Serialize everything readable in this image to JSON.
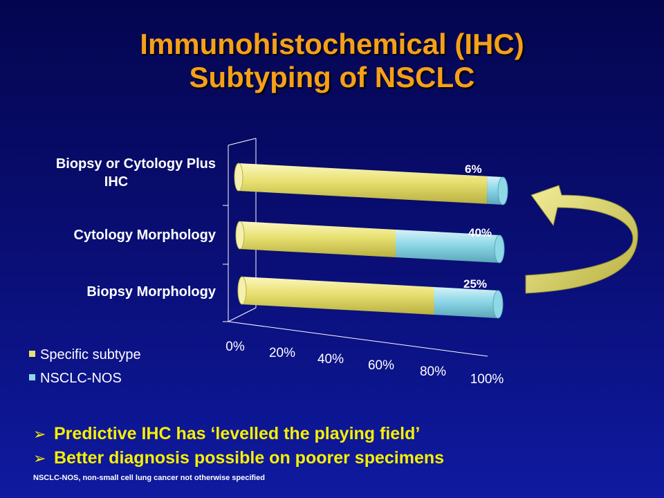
{
  "title": {
    "line1": "Immunohistochemical (IHC)",
    "line2": "Subtyping of NSCLC"
  },
  "chart_data": {
    "type": "bar",
    "orientation": "horizontal",
    "stacked": true,
    "categories": [
      "Biopsy or Cytology Plus IHC",
      "Cytology Morphology",
      "Biopsy Morphology"
    ],
    "category_lines": [
      [
        "Biopsy or Cytology Plus",
        "IHC"
      ],
      [
        "Cytology Morphology"
      ],
      [
        "Biopsy Morphology"
      ]
    ],
    "series": [
      {
        "name": "Specific subtype",
        "values": [
          94,
          60,
          75
        ],
        "color": "#e8e070"
      },
      {
        "name": "NSCLC-NOS",
        "values": [
          6,
          40,
          25
        ],
        "color": "#8ed8e8"
      }
    ],
    "data_labels": [
      "6%",
      "40%",
      "25%"
    ],
    "x_ticks": [
      "0%",
      "20%",
      "40%",
      "60%",
      "80%",
      "100%"
    ],
    "xlim": [
      0,
      100
    ],
    "legend": [
      "Specific subtype",
      "NSCLC-NOS"
    ],
    "legend_position": "bottom-left"
  },
  "bullets": [
    "Predictive IHC has ‘levelled the playing field’",
    "Better diagnosis possible on poorer specimens"
  ],
  "bullet_marker": "➢",
  "footnote": "NSCLC-NOS, non-small cell lung cancer not otherwise specified",
  "colors": {
    "title": "#f5a018",
    "bullet_text": "#f7f000",
    "arrow": "#d8d060"
  }
}
